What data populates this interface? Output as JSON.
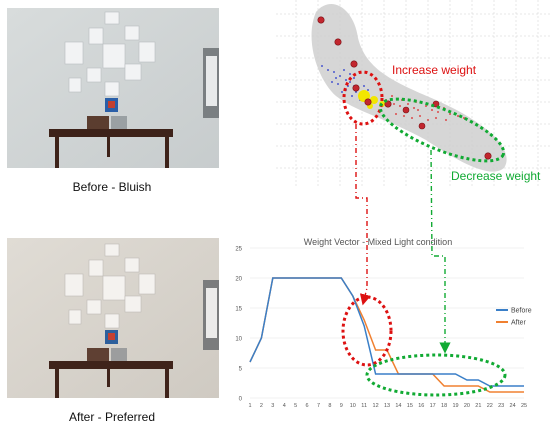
{
  "photos": {
    "before_caption": "Before - Bluish",
    "after_caption": "After - Preferred"
  },
  "scatter_panel": {
    "increase_label": "Increase weight",
    "decrease_label": "Decrease weight",
    "colors": {
      "red": "#dd1111",
      "green": "#11aa33",
      "blob": "#d0d0d0"
    }
  },
  "chart_data": {
    "type": "line",
    "title": "Weight Vector - Mixed Light condition",
    "x": [
      1,
      2,
      3,
      4,
      5,
      6,
      7,
      8,
      9,
      10,
      11,
      12,
      13,
      14,
      15,
      16,
      17,
      18,
      19,
      20,
      21,
      22,
      23,
      24,
      25
    ],
    "ylim": [
      0,
      25
    ],
    "yticks": [
      0,
      5,
      10,
      15,
      20,
      25
    ],
    "series": [
      {
        "name": "Before",
        "color": "#3a7fc8",
        "values": [
          6,
          10,
          20,
          20,
          20,
          20,
          20,
          20,
          20,
          17,
          12,
          4,
          4,
          4,
          4,
          4,
          4,
          4,
          4,
          3,
          3,
          2,
          2,
          2,
          2
        ]
      },
      {
        "name": "After",
        "color": "#f08030",
        "values": [
          6,
          10,
          20,
          20,
          20,
          20,
          20,
          20,
          20,
          17,
          13,
          8,
          8,
          4,
          4,
          4,
          4,
          2,
          2,
          2,
          2,
          1,
          1,
          1,
          1
        ]
      }
    ]
  }
}
